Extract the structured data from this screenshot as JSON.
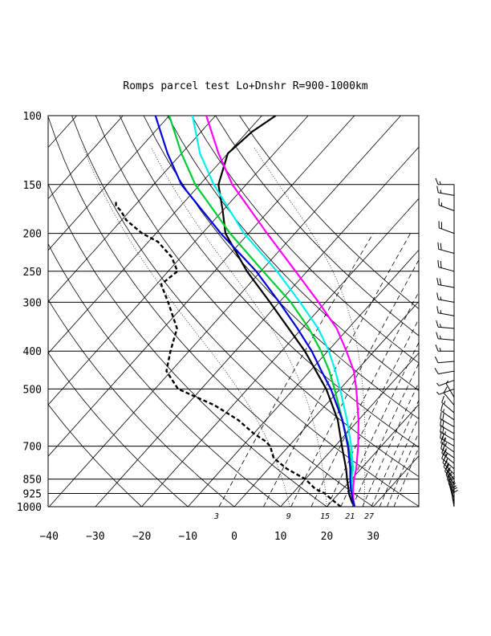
{
  "chart_data": {
    "type": "line",
    "title": "Romps parcel test Lo+Dnshr R=900-1000km",
    "pressure_levels": [
      100,
      150,
      200,
      250,
      300,
      400,
      500,
      700,
      850,
      925,
      1000
    ],
    "pressure_labels": [
      "100",
      "150",
      "200",
      "250",
      "300",
      "400",
      "500",
      "700",
      "850",
      "925",
      "1000"
    ],
    "temperature_ticks": [
      -40,
      -30,
      -20,
      -10,
      0,
      10,
      20,
      30
    ],
    "temperature_labels": [
      "−40",
      "−30",
      "−20",
      "−10",
      "0",
      "10",
      "20",
      "30"
    ],
    "xlim": [
      -40,
      40
    ],
    "ylim": [
      1000,
      100
    ],
    "mixing_ratio_labels": [
      "3",
      "9",
      "15",
      "21",
      "27"
    ],
    "series": [
      {
        "color": "#000000",
        "dash": "none",
        "p": [
          1000,
          975,
          950,
          925,
          900,
          850,
          800,
          700,
          600,
          500,
          400,
          300,
          250,
          200,
          175,
          150,
          125,
          110,
          100
        ],
        "t": [
          26,
          24.6,
          23.4,
          22.2,
          21.2,
          19,
          16.8,
          11.5,
          5.5,
          -3,
          -15,
          -32,
          -43,
          -55,
          -60,
          -66,
          -70,
          -69,
          -67
        ]
      },
      {
        "color": "#000000",
        "dash": "dashed",
        "p": [
          1000,
          975,
          950,
          925,
          900,
          850,
          800,
          750,
          700,
          680,
          650,
          600,
          550,
          500,
          450,
          400,
          350,
          300,
          270,
          250,
          230,
          210,
          200,
          185,
          175,
          170,
          165
        ],
        "t": [
          23,
          21,
          19,
          17,
          14,
          10,
          4,
          -1,
          -4,
          -6,
          -10,
          -16,
          -24,
          -35,
          -41,
          -44,
          -47,
          -54,
          -59,
          -58,
          -62,
          -68,
          -73,
          -79,
          -82,
          -84,
          -85
        ]
      },
      {
        "color": "#00cc33",
        "dash": "none",
        "p": [
          1000,
          950,
          900,
          850,
          800,
          700,
          600,
          500,
          450,
          400,
          350,
          300,
          250,
          200,
          150,
          125,
          100
        ],
        "t": [
          26,
          23.9,
          21.8,
          19.8,
          18,
          13,
          6.5,
          -1.2,
          -5.8,
          -11.5,
          -18.5,
          -27.5,
          -39.5,
          -54,
          -71,
          -80,
          -90
        ]
      },
      {
        "color": "#00f0f0",
        "dash": "none",
        "p": [
          1000,
          950,
          900,
          850,
          800,
          700,
          600,
          500,
          450,
          400,
          350,
          300,
          250,
          200,
          150,
          125,
          100
        ],
        "t": [
          26,
          23.9,
          21.9,
          20,
          18.3,
          13.5,
          7.5,
          0,
          -4.5,
          -9.8,
          -16.5,
          -25.5,
          -36.5,
          -51,
          -67,
          -76,
          -85
        ]
      },
      {
        "color": "#ff00ff",
        "dash": "none",
        "p": [
          1000,
          950,
          900,
          850,
          800,
          700,
          600,
          500,
          450,
          400,
          350,
          300,
          250,
          200,
          150,
          125,
          100
        ],
        "t": [
          26,
          24,
          22.2,
          20.5,
          19,
          15,
          10,
          3.5,
          -0.5,
          -6,
          -12.5,
          -21.5,
          -32.5,
          -46,
          -63,
          -72,
          -82
        ]
      },
      {
        "color": "#0000dd",
        "dash": "none",
        "p": [
          1000,
          950,
          900,
          850,
          800,
          700,
          600,
          500,
          450,
          400,
          350,
          300,
          250,
          200,
          150,
          125,
          100
        ],
        "t": [
          26,
          23.8,
          21.7,
          19.7,
          17.7,
          12.8,
          6.5,
          -2,
          -7.5,
          -13.5,
          -21,
          -30,
          -41,
          -56,
          -74,
          -83,
          -93
        ]
      }
    ],
    "wind_profile": {
      "p": [
        1000,
        975,
        950,
        925,
        900,
        875,
        850,
        825,
        800,
        775,
        750,
        725,
        700,
        675,
        650,
        625,
        600,
        575,
        550,
        525,
        500,
        475,
        450,
        425,
        400,
        375,
        350,
        325,
        300,
        275,
        250,
        225,
        200,
        175,
        160,
        150
      ],
      "speed_kt": [
        20,
        25,
        25,
        25,
        25,
        25,
        25,
        25,
        25,
        25,
        25,
        25,
        25,
        25,
        20,
        20,
        15,
        15,
        10,
        5,
        5,
        5,
        10,
        10,
        15,
        15,
        15,
        15,
        15,
        20,
        20,
        20,
        20,
        15,
        15,
        15
      ],
      "direction_deg": [
        350,
        345,
        340,
        335,
        330,
        325,
        320,
        315,
        310,
        310,
        305,
        305,
        300,
        300,
        300,
        300,
        305,
        310,
        320,
        330,
        250,
        250,
        260,
        265,
        270,
        275,
        275,
        280,
        280,
        280,
        285,
        285,
        290,
        290,
        280,
        270
      ]
    }
  }
}
